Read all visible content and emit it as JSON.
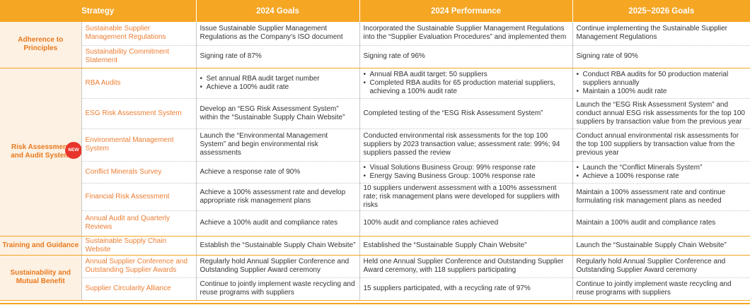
{
  "header": {
    "strategy": "Strategy",
    "goals_2024": "2024 Goals",
    "performance_2024": "2024 Performance",
    "goals_2025_2026": "2025~2026 Goals"
  },
  "groups": [
    {
      "category": "Adherence to Principles",
      "rows": [
        {
          "item": "Sustainable Supplier Management Regulations",
          "goals_2024": "Issue Sustainable Supplier Management Regulations as the Company’s ISO document",
          "performance_2024": "Incorporated the Sustainable Supplier Management Regulations into the “Supplier Evaluation Procedures” and implemented them",
          "goals_2025_2026": "Continue implementing the Sustainable Supplier Management Regulations"
        },
        {
          "item": "Sustainability Commitment Statement",
          "goals_2024": "Signing rate of 87%",
          "performance_2024": "Signing rate of 96%",
          "goals_2025_2026": "Signing rate of 90%"
        }
      ]
    },
    {
      "category": "Risk Assessment and Audit System",
      "badge": "NEW",
      "rows": [
        {
          "item": "RBA Audits",
          "goals_2024_list": [
            "Set annual RBA audit target number",
            "Achieve a 100% audit rate"
          ],
          "performance_2024_list": [
            "Annual RBA audit target: 50 suppliers",
            "Completed RBA audits for 65 production material suppliers, achieving a 100% audit rate"
          ],
          "goals_2025_2026_list": [
            "Conduct RBA audits for 50 production material suppliers annually",
            "Maintain a 100% audit rate"
          ]
        },
        {
          "item": "ESG Risk Assessment System",
          "goals_2024": "Develop an “ESG Risk Assessment System” within the “Sustainable Supply Chain Website”",
          "performance_2024": "Completed testing of the “ESG Risk Assessment System”",
          "goals_2025_2026": "Launch the “ESG Risk Assessment System” and conduct annual ESG risk assessments for the top 100 suppliers by transaction value from the previous year"
        },
        {
          "item": "Environmental Management System",
          "goals_2024": "Launch the “Environmental Management System” and begin environmental risk assessments",
          "performance_2024": "Conducted environmental risk assessments for the top 100 suppliers by 2023 transaction value; assessment rate: 99%; 94 suppliers passed the review",
          "goals_2025_2026": "Conduct annual environmental risk assessments for the top 100 suppliers by transaction value from the previous year"
        },
        {
          "item": "Conflict Minerals Survey",
          "goals_2024": "Achieve a response rate of 90%",
          "performance_2024_list": [
            "Visual Solutions Business Group: 99% response rate",
            "Energy Saving Business Group: 100% response rate"
          ],
          "goals_2025_2026_list": [
            "Launch the “Conflict Minerals System”",
            "Achieve a 100% response rate"
          ]
        },
        {
          "item": "Financial Risk Assessment",
          "goals_2024": "Achieve a 100% assessment rate and develop appropriate risk management plans",
          "performance_2024": "10 suppliers underwent assessment with a 100% assessment rate; risk management plans were developed for suppliers with risks",
          "goals_2025_2026": "Maintain a 100% assessment rate and continue formulating risk management plans as needed"
        },
        {
          "item": "Annual Audit and Quarterly Reviews",
          "goals_2024": "Achieve a 100% audit and compliance rates",
          "performance_2024": "100% audit and compliance rates achieved",
          "goals_2025_2026": "Maintain a 100% audit and compliance rates"
        }
      ]
    },
    {
      "category": "Training and Guidance",
      "rows": [
        {
          "item": "Sustainable Supply Chain Website",
          "goals_2024": "Establish the “Sustainable Supply Chain Website”",
          "performance_2024": "Established the “Sustainable Supply Chain Website”",
          "goals_2025_2026": "Launch the “Sustainable Supply Chain Website”"
        }
      ]
    },
    {
      "category": "Sustainability and Mutual Benefit",
      "rows": [
        {
          "item": "Annual Supplier Conference and Outstanding Supplier Awards",
          "goals_2024": "Regularly hold Annual Supplier Conference and Outstanding Supplier Award ceremony",
          "performance_2024": "Held one Annual Supplier Conference and Outstanding Supplier Award ceremony, with 118 suppliers participating",
          "goals_2025_2026": "Regularly hold Annual Supplier Conference and Outstanding Supplier Award ceremony"
        },
        {
          "item": "Supplier Circularity Alliance",
          "goals_2024": "Continue to jointly implement waste recycling and reuse programs with suppliers",
          "performance_2024": "15 suppliers participated, with a recycling rate of 97%",
          "goals_2025_2026": "Continue to jointly implement waste recycling and reuse programs with suppliers"
        }
      ]
    }
  ],
  "colors": {
    "header_bg": "#f5a623",
    "category_bg": "#fdf1e3",
    "category_text": "#e8791e",
    "item_text": "#ed7d31",
    "badge_bg": "#e8352a"
  }
}
